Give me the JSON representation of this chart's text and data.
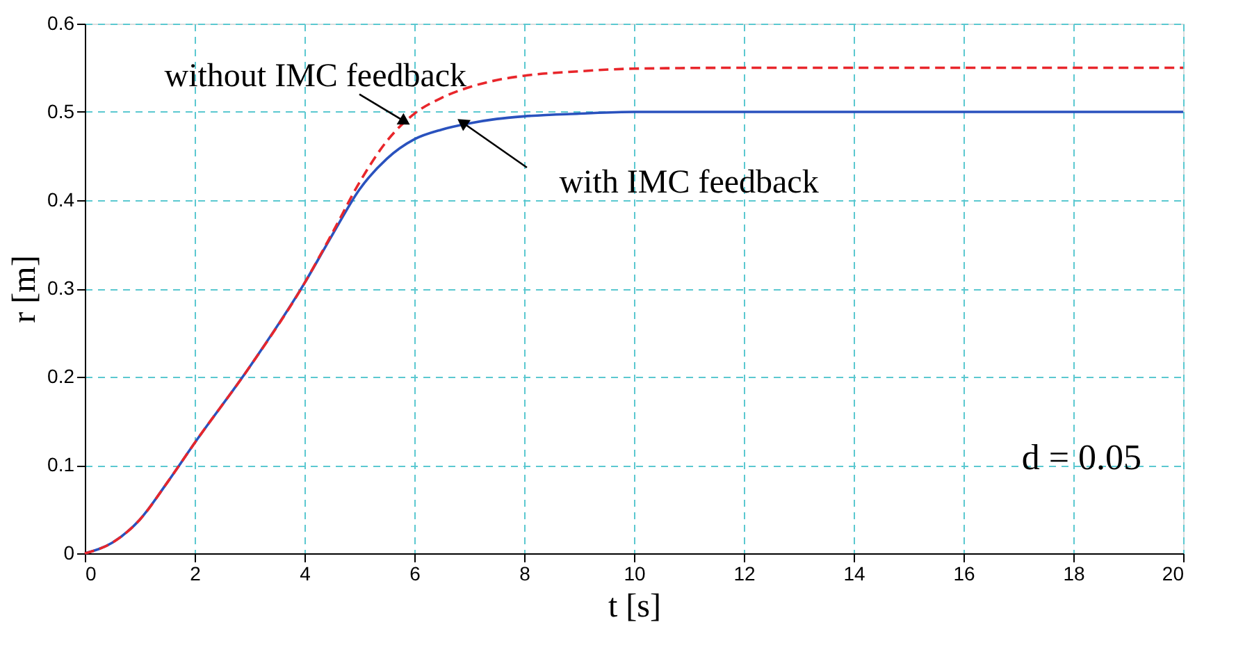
{
  "chart_data": {
    "type": "line",
    "xlabel": "t [s]",
    "ylabel": "r [m]",
    "x": [
      0,
      0.5,
      1,
      1.5,
      2,
      3,
      4,
      4.5,
      5,
      5.5,
      6,
      6.5,
      7,
      7.5,
      8,
      9,
      10,
      12,
      14,
      16,
      18,
      20
    ],
    "series": [
      {
        "color": "#2a52be",
        "line_style": "solid",
        "values": [
          0,
          0.012,
          0.038,
          0.08,
          0.125,
          0.211,
          0.306,
          0.36,
          0.412,
          0.447,
          0.469,
          0.48,
          0.487,
          0.492,
          0.495,
          0.498,
          0.5,
          0.5,
          0.5,
          0.5,
          0.5,
          0.5
        ]
      },
      {
        "color": "#e8262b",
        "line_style": "dashed",
        "values": [
          0,
          0.012,
          0.038,
          0.08,
          0.125,
          0.211,
          0.306,
          0.362,
          0.42,
          0.467,
          0.498,
          0.516,
          0.528,
          0.536,
          0.541,
          0.546,
          0.549,
          0.55,
          0.55,
          0.55,
          0.55,
          0.55
        ]
      }
    ],
    "xlim": [
      0,
      20
    ],
    "xticks": [
      0,
      2,
      4,
      6,
      8,
      10,
      12,
      14,
      16,
      18,
      20
    ],
    "ylim": [
      0,
      0.6
    ],
    "yticks": [
      0,
      0.1,
      0.2,
      0.3,
      0.4,
      0.5,
      0.6
    ],
    "grid": true,
    "marker": "none",
    "annotations": [
      {
        "text": "without IMC feedback",
        "x": 5.8,
        "y": 0.49
      },
      {
        "text": "with IMC feedback",
        "x": 6.9,
        "y": 0.487
      },
      "d = 0.05"
    ]
  }
}
